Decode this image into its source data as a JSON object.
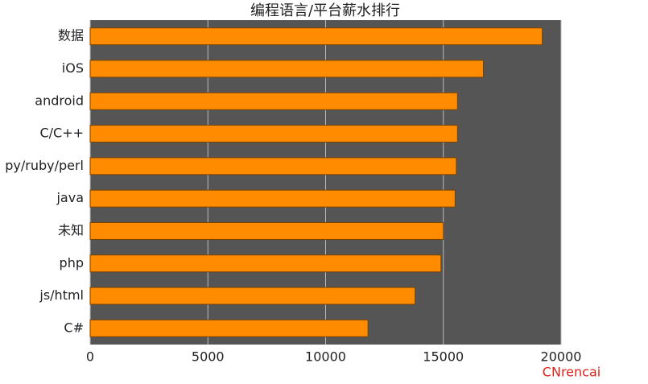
{
  "chart_data": {
    "type": "barh",
    "title": "编程语言/平台薪水排行",
    "categories": [
      "数据",
      "iOS",
      "android",
      "C/C++",
      "py/ruby/perl",
      "java",
      "未知",
      "php",
      "js/html",
      "C#"
    ],
    "values": [
      19200,
      16700,
      15600,
      15600,
      15550,
      15500,
      15000,
      14900,
      13800,
      11800
    ],
    "color": "#ff8c00",
    "xlim": [
      0,
      20000
    ],
    "xticks": [
      0,
      5000,
      10000,
      15000,
      20000
    ],
    "grid": true,
    "watermark": "CNrencai"
  }
}
